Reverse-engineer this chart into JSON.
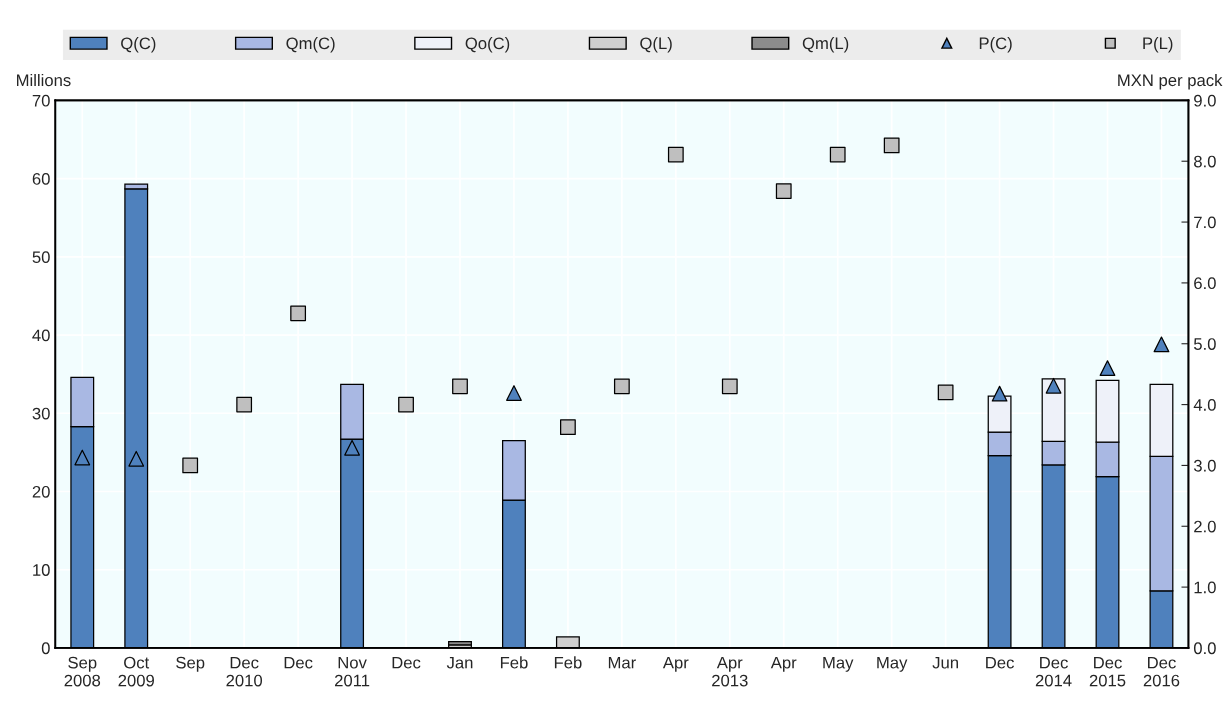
{
  "chart_data": {
    "type": "bar",
    "stacked": true,
    "categories": [
      "Sep\n2008",
      "Oct\n2009",
      "Sep",
      "Dec\n2010",
      "Dec",
      "Nov\n2011",
      "Dec",
      "Jan",
      "Feb",
      "Feb",
      "Mar",
      "Apr",
      "Apr\n2013",
      "Apr",
      "May",
      "May",
      "Jun",
      "Dec",
      "Dec\n2014",
      "Dec\n2015",
      "Dec\n2016"
    ],
    "series": [
      {
        "name": "Q(C)",
        "color": "#4f81bd",
        "values": [
          28.3,
          58.7,
          null,
          null,
          null,
          26.7,
          null,
          null,
          18.9,
          null,
          null,
          null,
          null,
          null,
          null,
          null,
          null,
          24.6,
          23.4,
          21.9,
          7.3
        ]
      },
      {
        "name": "Qm(C)",
        "color": "#a9b8e3",
        "values": [
          6.3,
          0.6,
          null,
          null,
          null,
          7.0,
          null,
          null,
          7.6,
          null,
          null,
          null,
          null,
          null,
          null,
          null,
          null,
          3.0,
          3.0,
          4.4,
          17.2
        ]
      },
      {
        "name": "Qo(C)",
        "color": "#eef1f9",
        "values": [
          null,
          null,
          null,
          null,
          null,
          null,
          null,
          null,
          null,
          null,
          null,
          null,
          null,
          null,
          null,
          null,
          null,
          4.6,
          8.0,
          7.9,
          9.2
        ]
      },
      {
        "name": "Q(L)",
        "color": "#cfcfcf",
        "values": [
          null,
          null,
          null,
          null,
          null,
          null,
          null,
          0.4,
          null,
          1.4,
          null,
          null,
          null,
          null,
          null,
          null,
          null,
          null,
          null,
          null,
          null
        ]
      },
      {
        "name": "Qm(L)",
        "color": "#8c8c8c",
        "values": [
          null,
          null,
          null,
          null,
          null,
          null,
          null,
          0.4,
          null,
          null,
          null,
          null,
          null,
          null,
          null,
          null,
          null,
          null,
          null,
          null,
          null
        ]
      },
      {
        "name": "P(C)",
        "type": "scatter",
        "axis": "y2",
        "marker": "triangle",
        "color": "#4f81bd",
        "values": [
          3.13,
          3.11,
          null,
          null,
          null,
          3.29,
          null,
          null,
          4.19,
          null,
          null,
          null,
          null,
          null,
          null,
          null,
          null,
          4.18,
          4.31,
          4.6,
          4.99
        ]
      },
      {
        "name": "P(L)",
        "type": "scatter",
        "axis": "y2",
        "marker": "square",
        "color": "#bfbfbf",
        "values": [
          null,
          null,
          3.0,
          4.0,
          5.5,
          null,
          4.0,
          4.3,
          null,
          3.63,
          4.3,
          8.11,
          4.3,
          7.51,
          8.11,
          8.26,
          4.2,
          null,
          null,
          null,
          null
        ]
      }
    ],
    "ylabel": "Millions",
    "y2label": "MXN per pack",
    "ylim": [
      0,
      70
    ],
    "yticks": [
      0,
      10,
      20,
      30,
      40,
      50,
      60,
      70
    ],
    "y2lim": [
      0,
      9
    ],
    "y2ticks": [
      {
        "value": 0,
        "label": "0.0"
      },
      {
        "value": 1,
        "label": "1.0"
      },
      {
        "value": 2,
        "label": "2.0"
      },
      {
        "value": 3,
        "label": "3.0"
      },
      {
        "value": 4,
        "label": "4.0"
      },
      {
        "value": 5,
        "label": "5.0"
      },
      {
        "value": 6,
        "label": "6.0"
      },
      {
        "value": 7,
        "label": "7.0"
      },
      {
        "value": 8,
        "label": "8.0"
      },
      {
        "value": 9,
        "label": "9.0"
      }
    ],
    "grid": true,
    "legend": "top"
  }
}
